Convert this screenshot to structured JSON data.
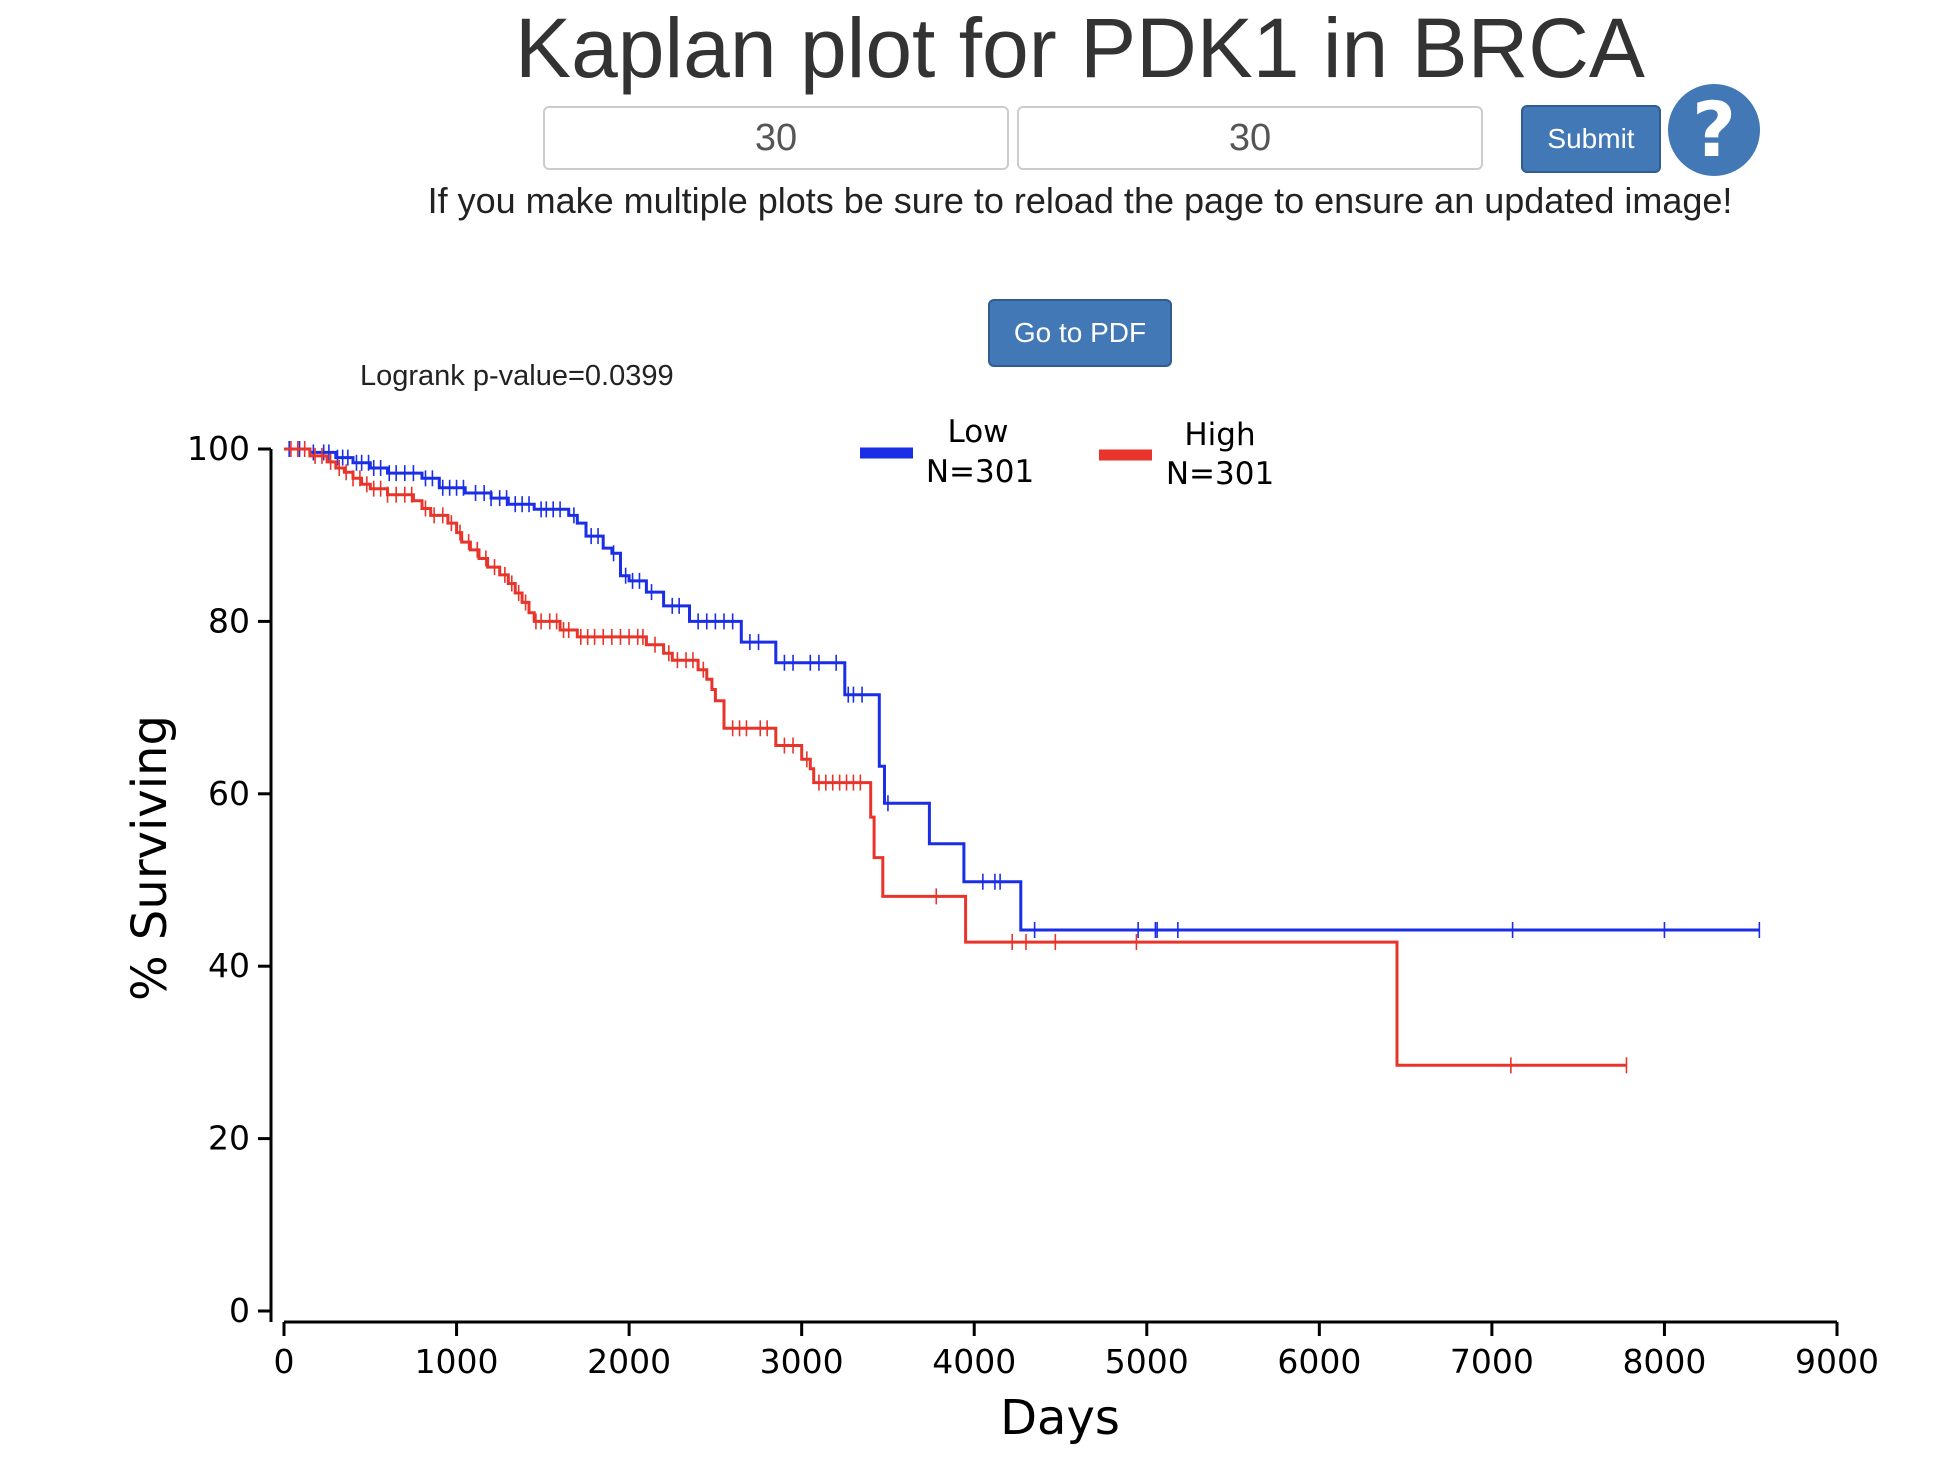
{
  "header": {
    "title": "Kaplan plot for PDK1 in BRCA"
  },
  "form": {
    "lower_value": "30",
    "upper_value": "30",
    "submit_label": "Submit",
    "help_glyph": "?",
    "help_icon": "question-circle-icon"
  },
  "notice": "If you make multiple plots be sure to reload the page to ensure an updated image!",
  "pdf_button_label": "Go to PDF",
  "colors": {
    "button": "#4178b5",
    "low": "#1a2ee6",
    "high": "#e8342a"
  },
  "chart_data": {
    "type": "line",
    "annotation": "Logrank p-value=0.0399",
    "xlabel": "Days",
    "ylabel": "% Surviving",
    "xlim": [
      0,
      9000
    ],
    "ylim": [
      0,
      100
    ],
    "x_ticks": [
      0,
      1000,
      2000,
      3000,
      4000,
      5000,
      6000,
      7000,
      8000,
      9000
    ],
    "y_ticks": [
      0,
      20,
      40,
      60,
      80,
      100
    ],
    "grid": false,
    "legend": "top-center",
    "series": [
      {
        "name": "Low",
        "n_label": "N=301",
        "color": "#1a2ee6",
        "steps": [
          [
            0,
            100
          ],
          [
            150,
            99.6
          ],
          [
            300,
            99
          ],
          [
            400,
            98.4
          ],
          [
            500,
            97.8
          ],
          [
            600,
            97.2
          ],
          [
            800,
            96.6
          ],
          [
            900,
            95.5
          ],
          [
            1050,
            94.9
          ],
          [
            1200,
            94.3
          ],
          [
            1300,
            93.6
          ],
          [
            1450,
            93
          ],
          [
            1650,
            92.3
          ],
          [
            1700,
            91.4
          ],
          [
            1750,
            89.9
          ],
          [
            1850,
            88.5
          ],
          [
            1900,
            87.9
          ],
          [
            1950,
            85.3
          ],
          [
            2000,
            84.7
          ],
          [
            2100,
            83.4
          ],
          [
            2200,
            81.8
          ],
          [
            2350,
            80
          ],
          [
            2650,
            77.6
          ],
          [
            2850,
            75.2
          ],
          [
            3250,
            71.5
          ],
          [
            3450,
            63.2
          ],
          [
            3480,
            58.9
          ],
          [
            3740,
            54.2
          ],
          [
            3940,
            49.8
          ],
          [
            4270,
            44.2
          ],
          [
            8550,
            44.2
          ]
        ],
        "censors": [
          30,
          90,
          170,
          230,
          260,
          310,
          340,
          370,
          420,
          450,
          490,
          520,
          560,
          610,
          650,
          700,
          750,
          820,
          860,
          920,
          960,
          1000,
          1040,
          1110,
          1160,
          1200,
          1250,
          1290,
          1340,
          1380,
          1420,
          1490,
          1520,
          1560,
          1600,
          1680,
          1780,
          1820,
          1910,
          1980,
          2020,
          2060,
          2130,
          2250,
          2290,
          2400,
          2450,
          2500,
          2550,
          2600,
          2700,
          2750,
          2900,
          2950,
          3050,
          3100,
          3200,
          3270,
          3300,
          3350,
          3500,
          4050,
          4120,
          4150,
          4350,
          4950,
          5050,
          5060,
          5180,
          7120,
          8000,
          8550
        ]
      },
      {
        "name": "High",
        "n_label": "N=301",
        "color": "#e8342a",
        "steps": [
          [
            0,
            100
          ],
          [
            150,
            99.2
          ],
          [
            250,
            98.5
          ],
          [
            300,
            97.8
          ],
          [
            350,
            97.3
          ],
          [
            400,
            96.6
          ],
          [
            450,
            95.9
          ],
          [
            500,
            95.4
          ],
          [
            600,
            94.7
          ],
          [
            750,
            94
          ],
          [
            800,
            93.1
          ],
          [
            850,
            92.3
          ],
          [
            950,
            91.4
          ],
          [
            1000,
            90.3
          ],
          [
            1030,
            89.2
          ],
          [
            1080,
            88.3
          ],
          [
            1130,
            87.3
          ],
          [
            1180,
            86.3
          ],
          [
            1250,
            85.4
          ],
          [
            1300,
            84.4
          ],
          [
            1340,
            83.3
          ],
          [
            1380,
            82.2
          ],
          [
            1420,
            81
          ],
          [
            1450,
            80
          ],
          [
            1600,
            79
          ],
          [
            1700,
            78.2
          ],
          [
            2100,
            77.3
          ],
          [
            2200,
            76.3
          ],
          [
            2250,
            75.5
          ],
          [
            2400,
            74.4
          ],
          [
            2450,
            73.3
          ],
          [
            2480,
            72.1
          ],
          [
            2500,
            70.8
          ],
          [
            2550,
            67.6
          ],
          [
            2850,
            65.6
          ],
          [
            3000,
            64
          ],
          [
            3050,
            62.9
          ],
          [
            3070,
            61.3
          ],
          [
            3400,
            57.3
          ],
          [
            3420,
            52.6
          ],
          [
            3470,
            48.1
          ],
          [
            3950,
            42.8
          ],
          [
            6450,
            28.5
          ],
          [
            7780,
            28.5
          ]
        ],
        "censors": [
          40,
          80,
          120,
          180,
          220,
          270,
          320,
          360,
          400,
          440,
          480,
          520,
          560,
          600,
          650,
          700,
          740,
          820,
          870,
          920,
          970,
          1020,
          1070,
          1120,
          1170,
          1220,
          1280,
          1320,
          1360,
          1400,
          1460,
          1490,
          1540,
          1580,
          1620,
          1650,
          1720,
          1760,
          1800,
          1850,
          1900,
          1950,
          2000,
          2050,
          2080,
          2150,
          2230,
          2280,
          2330,
          2370,
          2430,
          2600,
          2640,
          2680,
          2760,
          2800,
          2900,
          2950,
          3030,
          3100,
          3140,
          3180,
          3220,
          3260,
          3300,
          3340,
          3780,
          4220,
          4300,
          4470,
          4940,
          7110,
          7780
        ]
      }
    ]
  }
}
